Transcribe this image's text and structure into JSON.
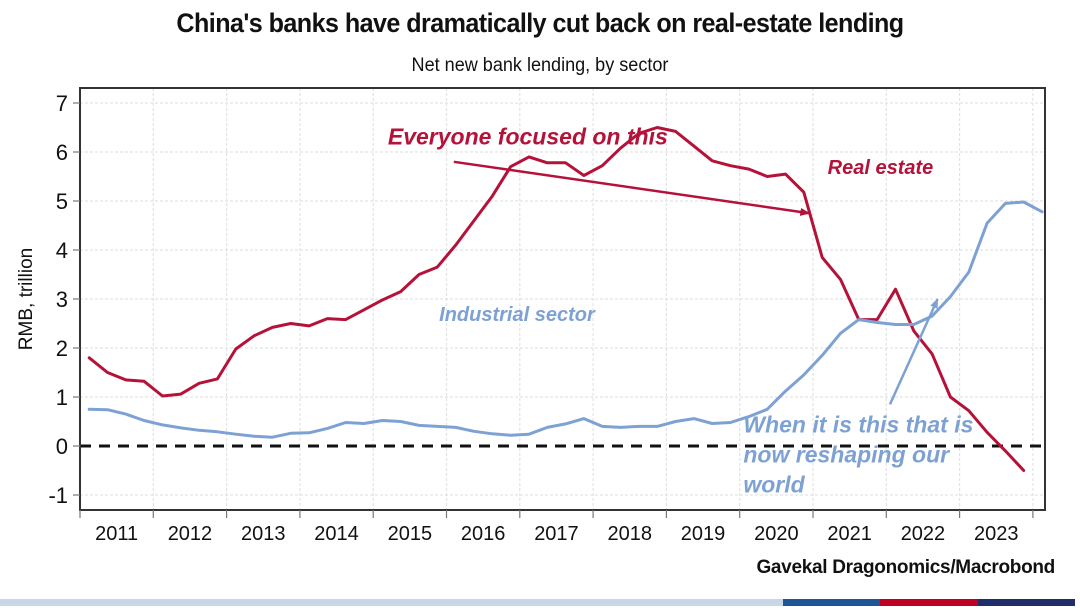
{
  "chart_data": {
    "type": "line",
    "title": "China's banks have dramatically cut back on real-estate lending",
    "subtitle": "Net new bank lending, by sector",
    "xlabel": "",
    "ylabel": "RMB, trillion",
    "ylim": [
      -1.3,
      7.3
    ],
    "xlim": [
      2011.0,
      2024.2
    ],
    "yticks": [
      "-1",
      "0",
      "1",
      "2",
      "3",
      "4",
      "5",
      "6",
      "7"
    ],
    "ytick_values": [
      -1,
      0,
      1,
      2,
      3,
      4,
      5,
      6,
      7
    ],
    "xtick_labels": [
      "2011",
      "2012",
      "2013",
      "2014",
      "2015",
      "2016",
      "2017",
      "2018",
      "2019",
      "2020",
      "2021",
      "2022",
      "2023"
    ],
    "grid": true,
    "reference_line": {
      "y": 0,
      "style": "dashed",
      "color": "#111111"
    },
    "x_start": 2011.125,
    "x_step": 0.25,
    "series": [
      {
        "name": "Real estate",
        "color": "#b5123a",
        "values": [
          1.8,
          1.5,
          1.35,
          1.32,
          1.02,
          1.06,
          1.28,
          1.37,
          1.98,
          2.25,
          2.42,
          2.5,
          2.45,
          2.6,
          2.58,
          2.78,
          2.98,
          3.15,
          3.5,
          3.65,
          4.1,
          4.6,
          5.1,
          5.7,
          5.9,
          5.78,
          5.78,
          5.52,
          5.72,
          6.08,
          6.38,
          6.5,
          6.42,
          6.12,
          5.82,
          5.72,
          5.65,
          5.5,
          5.55,
          5.18,
          3.85,
          3.4,
          2.58,
          2.58,
          3.2,
          2.35,
          1.88,
          1.0,
          0.72,
          0.28,
          -0.1,
          -0.5
        ]
      },
      {
        "name": "Industrial sector",
        "color": "#7ea1d4",
        "values": [
          0.75,
          0.74,
          0.65,
          0.52,
          0.43,
          0.37,
          0.32,
          0.29,
          0.24,
          0.2,
          0.18,
          0.26,
          0.27,
          0.36,
          0.48,
          0.46,
          0.52,
          0.5,
          0.42,
          0.4,
          0.38,
          0.3,
          0.25,
          0.22,
          0.24,
          0.38,
          0.45,
          0.56,
          0.4,
          0.38,
          0.4,
          0.4,
          0.5,
          0.56,
          0.46,
          0.48,
          0.6,
          0.75,
          1.12,
          1.45,
          1.85,
          2.3,
          2.58,
          2.52,
          2.48,
          2.48,
          2.65,
          3.05,
          3.55,
          4.55,
          4.95,
          4.98,
          4.78
        ]
      }
    ],
    "series_labels": [
      {
        "text": "Real estate",
        "series": "Real estate",
        "x": 2021.2,
        "y": 5.55
      },
      {
        "text": "Industrial sector",
        "series": "Industrial sector",
        "x": 2015.9,
        "y": 2.55
      }
    ],
    "annotations": [
      {
        "text": "Everyone focused on this",
        "color": "#b5123a",
        "x": 2015.2,
        "y": 6.15,
        "arrow_from": [
          2016.1,
          5.8
        ],
        "arrow_to": [
          2020.95,
          4.75
        ]
      },
      {
        "text_lines": [
          "When it is this that is",
          "now reshaping our",
          "world"
        ],
        "color": "#7ea1d4",
        "x": 2020.05,
        "y": 0.28,
        "arrow_from": [
          2022.05,
          0.85
        ],
        "arrow_to": [
          2022.7,
          3.0
        ]
      }
    ]
  },
  "source": "Gavekal Dragonomics/Macrobond",
  "footer_bar_colors": [
    "#c5d7e8",
    "#1f5597",
    "#c00020",
    "#1f2d6b"
  ]
}
